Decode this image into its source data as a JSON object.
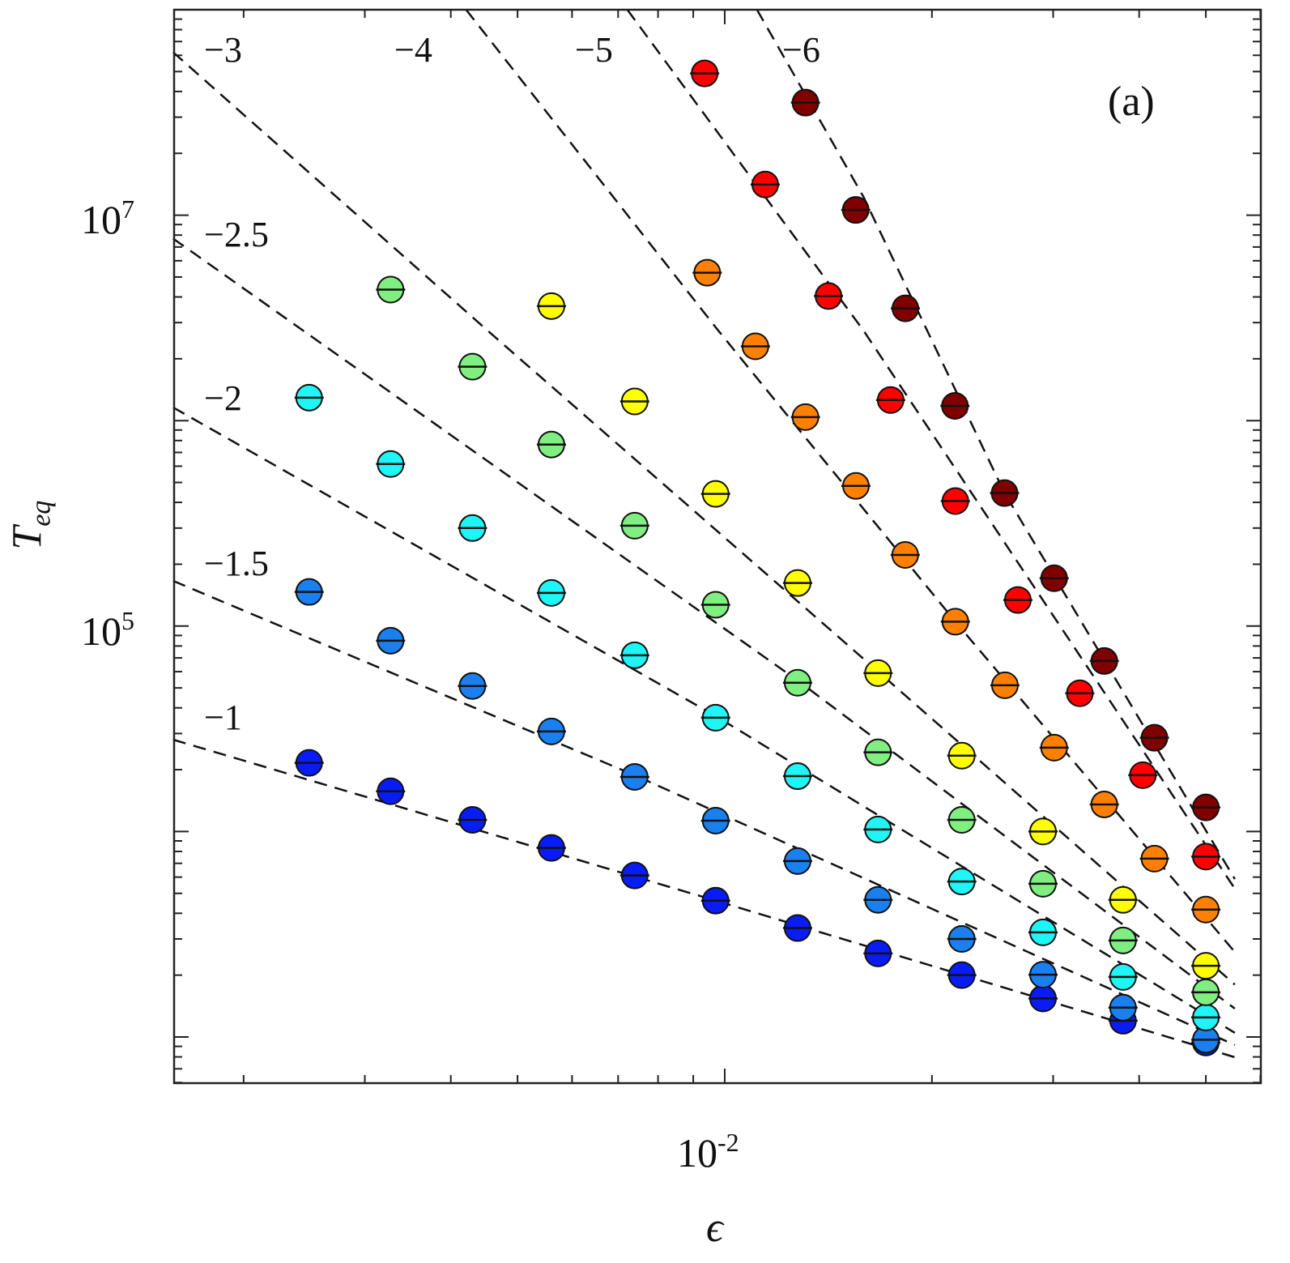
{
  "chart_data": {
    "type": "scatter",
    "panel_label": "(a)",
    "xlabel": "ϵ",
    "ylabel": {
      "base": "T",
      "sub": "eq"
    },
    "xscale": "log",
    "yscale": "log",
    "xlim": [
      0.001585,
      0.0601
    ],
    "ylim": [
      596,
      100000000
    ],
    "x_tick_labels": [
      {
        "value": 0.01,
        "base": "10",
        "exp": "-2"
      }
    ],
    "y_tick_labels": [
      {
        "value": 10000000,
        "base": "10",
        "exp": "7"
      },
      {
        "value": 100000,
        "base": "10",
        "exp": "5"
      }
    ],
    "grid": false,
    "series": [
      {
        "name": "-1",
        "color": "#0a1cf5",
        "x": [
          0.00249,
          0.00327,
          0.0043,
          0.0056,
          0.0074,
          0.0097,
          0.01276,
          0.0167,
          0.0221,
          0.029,
          0.0379,
          0.05
        ],
        "y": [
          21600,
          15700,
          11400,
          8320,
          6110,
          4610,
          3390,
          2550,
          2000,
          1540,
          1200,
          940
        ]
      },
      {
        "name": "-1.5",
        "color": "#1a80f0",
        "x": [
          0.00249,
          0.00327,
          0.0043,
          0.0056,
          0.0074,
          0.0097,
          0.01276,
          0.0167,
          0.0221,
          0.029,
          0.0379,
          0.05
        ],
        "y": [
          146600,
          84900,
          51100,
          30700,
          18450,
          11300,
          7180,
          4650,
          3000,
          2010,
          1390,
          970
        ]
      },
      {
        "name": "-2",
        "color": "#1ff5f5",
        "x": [
          0.00249,
          0.00327,
          0.0043,
          0.0056,
          0.0074,
          0.0097,
          0.01276,
          0.0167,
          0.0221,
          0.029,
          0.0379,
          0.05
        ],
        "y": [
          1294000,
          615000,
          300000,
          145000,
          72100,
          35800,
          18600,
          10230,
          5710,
          3230,
          1960,
          1245
        ]
      },
      {
        "name": "-2.5",
        "color": "#80ee80",
        "x": [
          0.00327,
          0.0043,
          0.0056,
          0.0074,
          0.0097,
          0.01276,
          0.0167,
          0.0221,
          0.029,
          0.0379,
          0.05
        ],
        "y": [
          4340000,
          1830000,
          765000,
          308000,
          127000,
          53000,
          24300,
          11400,
          5570,
          2950,
          1650
        ]
      },
      {
        "name": "-3",
        "color": "#ffff00",
        "x": [
          0.0056,
          0.0074,
          0.0097,
          0.01276,
          0.0167,
          0.0221,
          0.029,
          0.0379,
          0.05
        ],
        "y": [
          3610000,
          1240000,
          440000,
          162000,
          59000,
          23400,
          10000,
          4650,
          2220
        ]
      },
      {
        "name": "-4",
        "color": "#ff8000",
        "x": [
          0.00943,
          0.01108,
          0.0131,
          0.01551,
          0.01829,
          0.02163,
          0.02553,
          0.0301,
          0.0356,
          0.0421,
          0.05
        ],
        "y": [
          5250000,
          2300000,
          1040000,
          481000,
          222000,
          105000,
          51500,
          25600,
          13550,
          7380,
          4170
        ]
      },
      {
        "name": "-5",
        "color": "#ff0000",
        "x": [
          0.00935,
          0.01145,
          0.01415,
          0.01742,
          0.02163,
          0.02666,
          0.0328,
          0.0405,
          0.05
        ],
        "y": [
          49000000,
          14100000,
          4040000,
          1260000,
          406000,
          134000,
          47100,
          18800,
          7550
        ]
      },
      {
        "name": "-6",
        "color": "#800000",
        "x": [
          0.0131,
          0.0155,
          0.0183,
          0.0216,
          0.0255,
          0.0301,
          0.0356,
          0.0421,
          0.05
        ],
        "y": [
          35300000,
          10600000,
          3520000,
          1180000,
          444000,
          171000,
          67600,
          28600,
          13100
        ]
      }
    ],
    "fit_lines": [
      {
        "label": "−1",
        "x": [
          0.00158,
          0.0097,
          0.0551
        ],
        "y": [
          28000,
          4610,
          797
        ]
      },
      {
        "label": "−1.5",
        "x": [
          0.00158,
          0.0074,
          0.0551
        ],
        "y": [
          166000,
          18800,
          914
        ]
      },
      {
        "label": "−2",
        "x": [
          0.00158,
          0.0097,
          0.0551
        ],
        "y": [
          1160000,
          36500,
          1047
        ]
      },
      {
        "label": "−2.5",
        "x": [
          0.00158,
          0.01276,
          0.0551
        ],
        "y": [
          7690000,
          54400,
          1374
        ]
      },
      {
        "label": "−3",
        "x": [
          0.00158,
          0.00452,
          0.0167,
          0.0551
        ],
        "y": [
          62100000,
          2750000,
          60100,
          1800
        ]
      },
      {
        "label": "−4",
        "x": [
          0.00421,
          0.00978,
          0.02163,
          0.0551
        ],
        "y": [
          100000000,
          2750000,
          105000,
          2590
        ]
      },
      {
        "label": "−5",
        "x": [
          0.00722,
          0.0159,
          0.0551
        ],
        "y": [
          100000000,
          2750000,
          5270
        ]
      },
      {
        "label": "−6",
        "x": [
          0.01114,
          0.0159,
          0.0255,
          0.0551
        ],
        "y": [
          100000000,
          12300000,
          444000,
          5870
        ]
      }
    ]
  }
}
